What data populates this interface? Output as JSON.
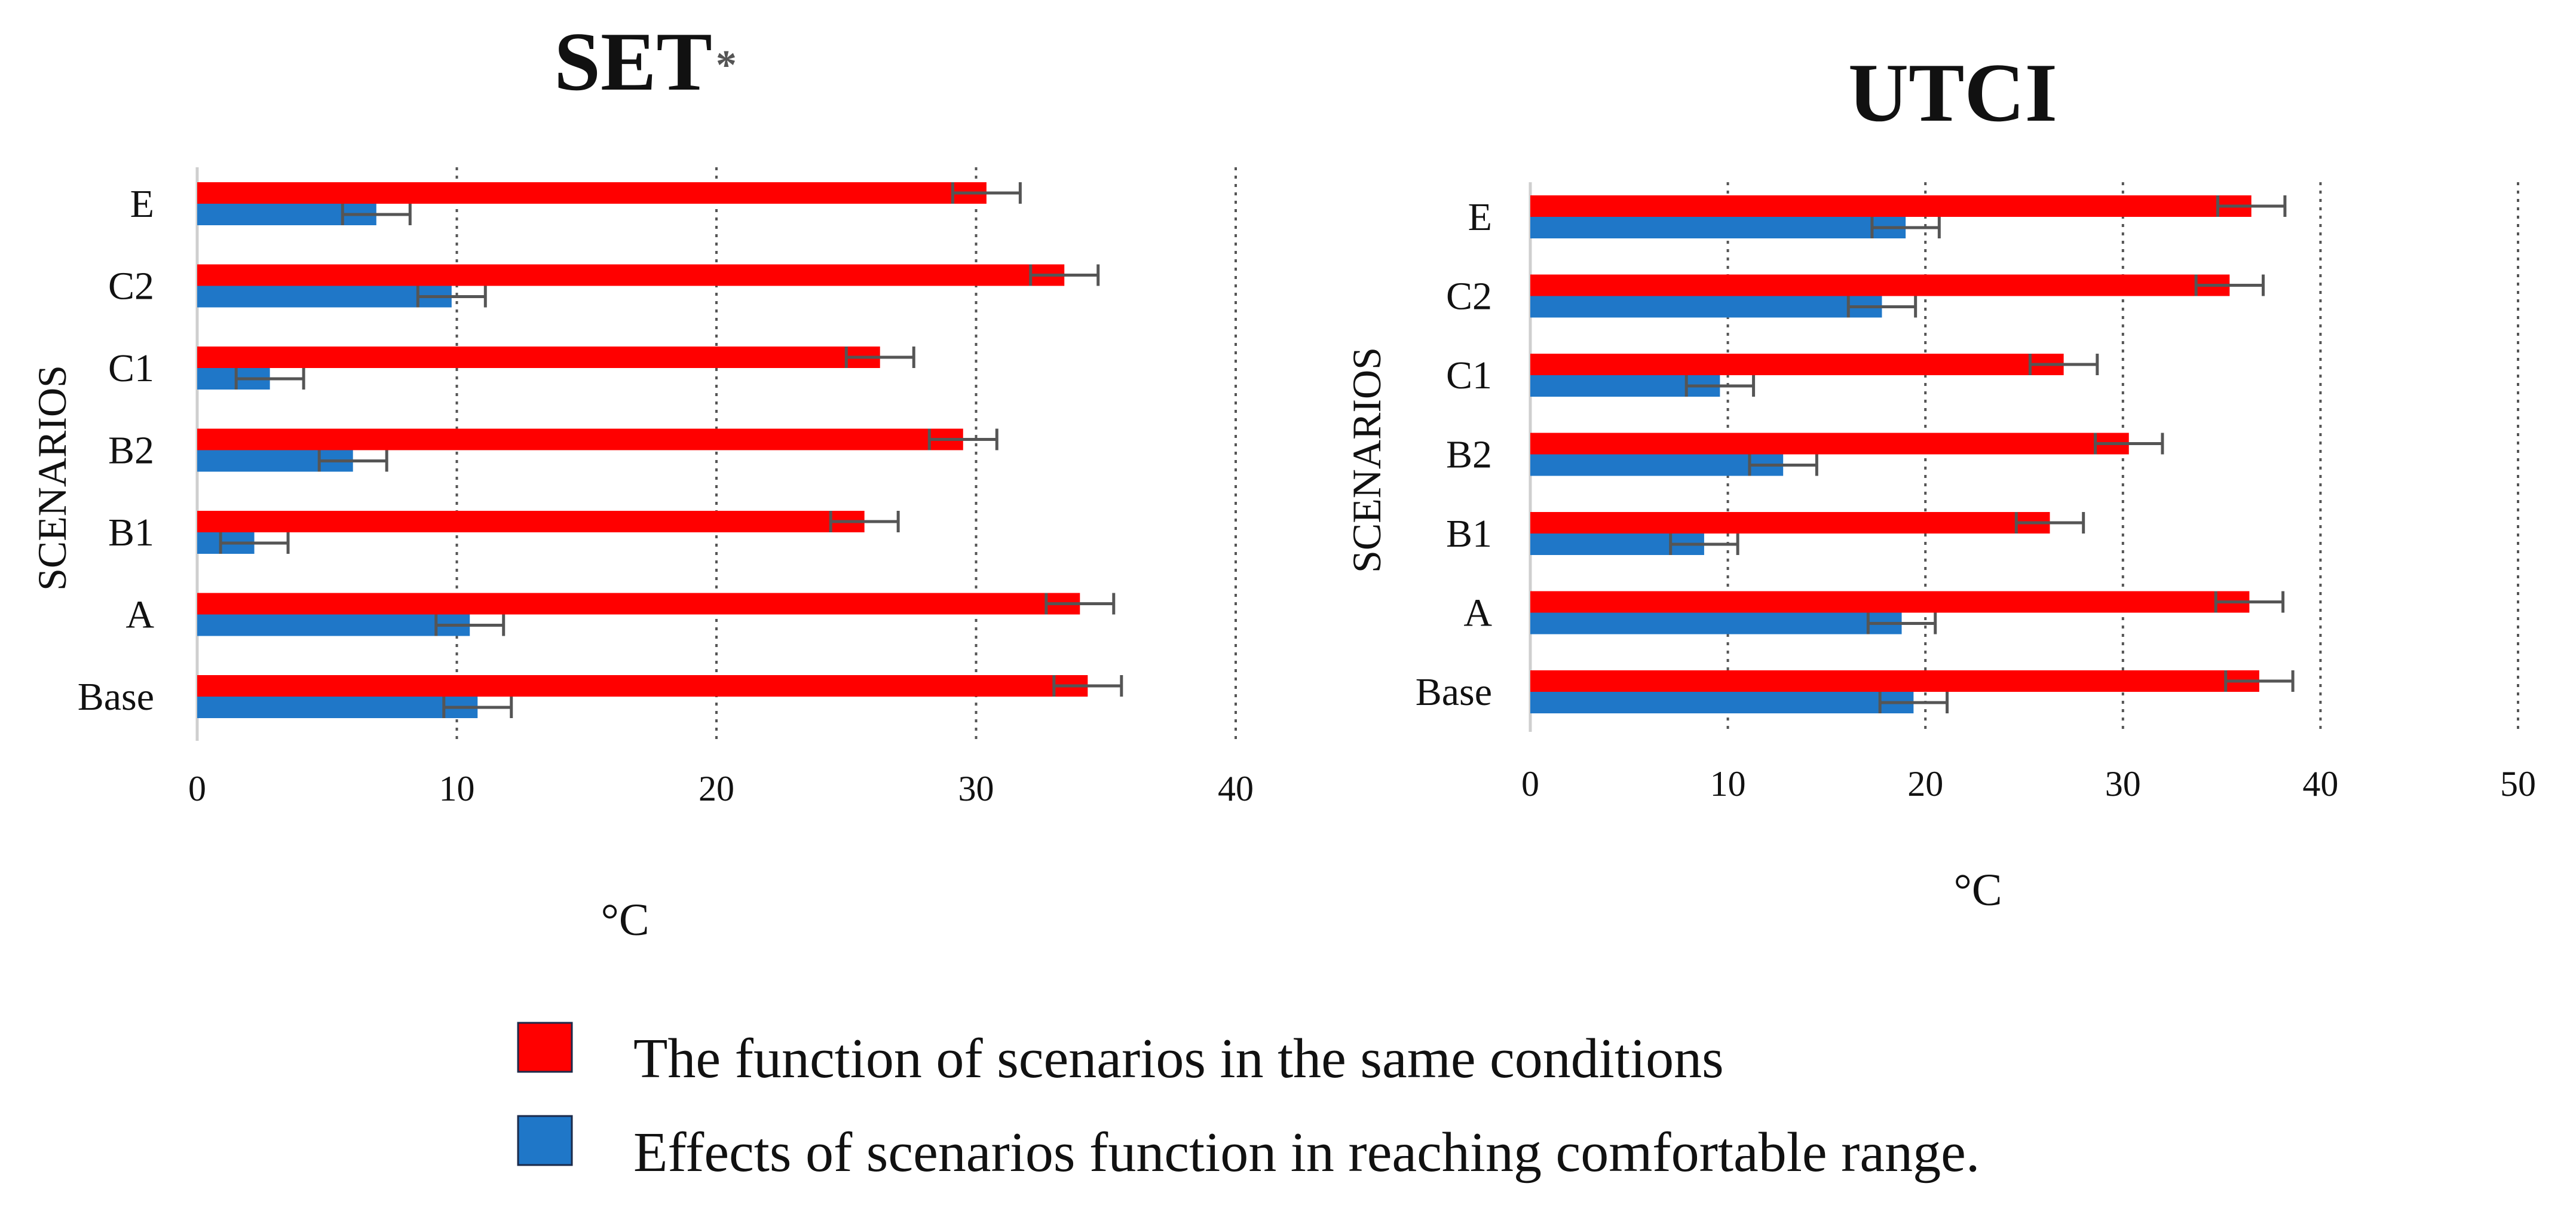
{
  "colors": {
    "same_conditions": "#ff0000",
    "comfortable_range": "#1f77c8",
    "error_bar": "#555555",
    "gridline": "#555555",
    "axis": "#cfcfcf"
  },
  "legend": {
    "items": [
      {
        "key": "same_conditions",
        "label": "The function of scenarios in the same conditions"
      },
      {
        "key": "comfortable_range",
        "label": "Effects of scenarios function in reaching comfortable range."
      }
    ]
  },
  "chart_data": [
    {
      "type": "bar",
      "orientation": "horizontal",
      "title": "SET",
      "title_suffix": "*",
      "xlabel": "°C",
      "ylabel": "SCENARIOS",
      "xlim": [
        0,
        40
      ],
      "xticks": [
        0,
        10,
        20,
        30,
        40
      ],
      "grid": true,
      "categories": [
        "E",
        "C2",
        "C1",
        "B2",
        "B1",
        "A",
        "Base"
      ],
      "series": [
        {
          "name": "The function of scenarios in the same conditions",
          "color_key": "same_conditions",
          "values": [
            30.4,
            33.4,
            26.3,
            29.5,
            25.7,
            34.0,
            34.3
          ],
          "errors": [
            1.3,
            1.3,
            1.3,
            1.3,
            1.3,
            1.3,
            1.3
          ]
        },
        {
          "name": "Effects of scenarios function in reaching comfortable range.",
          "color_key": "comfortable_range",
          "values": [
            6.9,
            9.8,
            2.8,
            6.0,
            2.2,
            10.5,
            10.8
          ],
          "errors": [
            1.3,
            1.3,
            1.3,
            1.3,
            1.3,
            1.3,
            1.3
          ]
        }
      ]
    },
    {
      "type": "bar",
      "orientation": "horizontal",
      "title": "UTCI",
      "title_suffix": "",
      "xlabel": "°C",
      "ylabel": "SCENARIOS",
      "xlim": [
        0,
        50
      ],
      "xticks": [
        0,
        10,
        20,
        30,
        40,
        50
      ],
      "grid": true,
      "categories": [
        "E",
        "C2",
        "C1",
        "B2",
        "B1",
        "A",
        "Base"
      ],
      "series": [
        {
          "name": "The function of scenarios in the same conditions",
          "color_key": "same_conditions",
          "values": [
            36.5,
            35.4,
            27.0,
            30.3,
            26.3,
            36.4,
            36.9
          ],
          "errors": [
            1.7,
            1.7,
            1.7,
            1.7,
            1.7,
            1.7,
            1.7
          ]
        },
        {
          "name": "Effects of scenarios function in reaching comfortable range.",
          "color_key": "comfortable_range",
          "values": [
            19.0,
            17.8,
            9.6,
            12.8,
            8.8,
            18.8,
            19.4
          ],
          "errors": [
            1.7,
            1.7,
            1.7,
            1.7,
            1.7,
            1.7,
            1.7
          ]
        }
      ]
    }
  ]
}
